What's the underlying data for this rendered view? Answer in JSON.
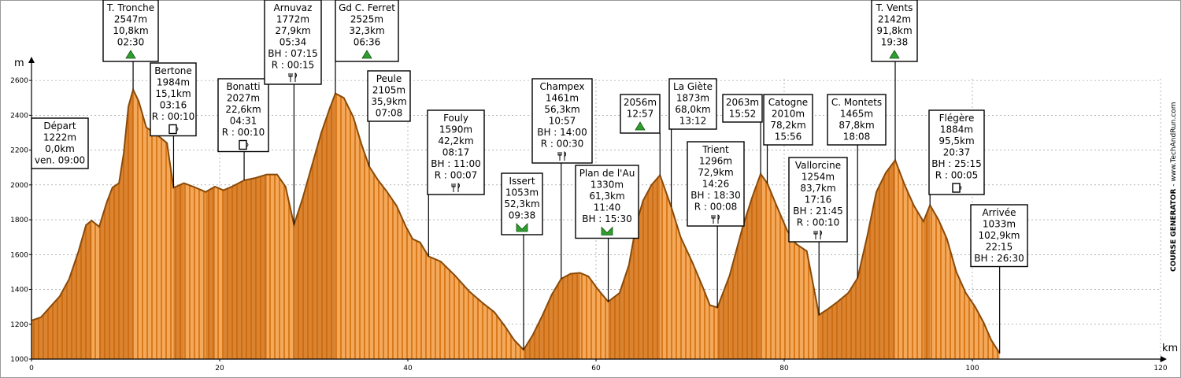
{
  "chart_data": {
    "type": "area",
    "x_unit": "km",
    "y_unit": "m",
    "xlim": [
      0,
      120
    ],
    "ylim": [
      1000,
      2700
    ],
    "x_ticks": [
      0,
      20,
      40,
      60,
      80,
      100,
      120
    ],
    "y_ticks": [
      1000,
      1200,
      1400,
      1600,
      1800,
      2000,
      2200,
      2400,
      2600
    ],
    "grid": true,
    "colors": {
      "fill_dark": "#c4650f",
      "fill_light": "#f4a85a",
      "line": "#8a4a08"
    },
    "profile": [
      [
        0,
        1222
      ],
      [
        1,
        1240
      ],
      [
        2,
        1300
      ],
      [
        3,
        1360
      ],
      [
        4,
        1460
      ],
      [
        5,
        1620
      ],
      [
        5.8,
        1770
      ],
      [
        6.4,
        1795
      ],
      [
        7.2,
        1760
      ],
      [
        8,
        1900
      ],
      [
        8.6,
        1985
      ],
      [
        9.3,
        2010
      ],
      [
        9.8,
        2180
      ],
      [
        10.3,
        2450
      ],
      [
        10.8,
        2547
      ],
      [
        11.4,
        2480
      ],
      [
        12.2,
        2330
      ],
      [
        13.3,
        2290
      ],
      [
        14.4,
        2240
      ],
      [
        15.1,
        1984
      ],
      [
        16.2,
        2010
      ],
      [
        17.2,
        1990
      ],
      [
        18.5,
        1960
      ],
      [
        19.5,
        1990
      ],
      [
        20.4,
        1970
      ],
      [
        21.3,
        1990
      ],
      [
        22.6,
        2027
      ],
      [
        23.8,
        2040
      ],
      [
        25,
        2060
      ],
      [
        26.1,
        2060
      ],
      [
        27,
        1990
      ],
      [
        27.9,
        1772
      ],
      [
        28.8,
        1920
      ],
      [
        29.8,
        2110
      ],
      [
        30.8,
        2300
      ],
      [
        31.7,
        2440
      ],
      [
        32.3,
        2525
      ],
      [
        33.2,
        2500
      ],
      [
        34.2,
        2390
      ],
      [
        35.1,
        2230
      ],
      [
        35.9,
        2105
      ],
      [
        36.8,
        2030
      ],
      [
        37.8,
        1960
      ],
      [
        38.8,
        1880
      ],
      [
        39.8,
        1760
      ],
      [
        40.5,
        1690
      ],
      [
        41.3,
        1670
      ],
      [
        42.2,
        1590
      ],
      [
        43.5,
        1560
      ],
      [
        45,
        1480
      ],
      [
        46.5,
        1390
      ],
      [
        48,
        1320
      ],
      [
        49.2,
        1270
      ],
      [
        50.3,
        1190
      ],
      [
        51.3,
        1110
      ],
      [
        52.3,
        1053
      ],
      [
        53.3,
        1140
      ],
      [
        54.3,
        1250
      ],
      [
        55.3,
        1370
      ],
      [
        56.3,
        1461
      ],
      [
        57.3,
        1490
      ],
      [
        58.3,
        1495
      ],
      [
        59.2,
        1475
      ],
      [
        60.2,
        1400
      ],
      [
        61.3,
        1330
      ],
      [
        62.5,
        1380
      ],
      [
        63.5,
        1540
      ],
      [
        64.3,
        1780
      ],
      [
        65,
        1910
      ],
      [
        65.9,
        2000
      ],
      [
        66.8,
        2056
      ],
      [
        68,
        1873
      ],
      [
        69,
        1700
      ],
      [
        70.2,
        1560
      ],
      [
        71.3,
        1420
      ],
      [
        72.1,
        1310
      ],
      [
        72.9,
        1296
      ],
      [
        74.2,
        1480
      ],
      [
        75.6,
        1760
      ],
      [
        76.6,
        1930
      ],
      [
        77.5,
        2063
      ],
      [
        78.2,
        2010
      ],
      [
        79.2,
        1880
      ],
      [
        80.3,
        1740
      ],
      [
        81.3,
        1660
      ],
      [
        82.4,
        1620
      ],
      [
        83.7,
        1254
      ],
      [
        84.7,
        1290
      ],
      [
        85.7,
        1330
      ],
      [
        86.8,
        1380
      ],
      [
        87.8,
        1465
      ],
      [
        88.8,
        1700
      ],
      [
        89.8,
        1960
      ],
      [
        90.8,
        2070
      ],
      [
        91.8,
        2142
      ],
      [
        92.8,
        2000
      ],
      [
        93.8,
        1880
      ],
      [
        94.8,
        1790
      ],
      [
        95.5,
        1884
      ],
      [
        96.4,
        1800
      ],
      [
        97.3,
        1690
      ],
      [
        98.3,
        1500
      ],
      [
        99.3,
        1380
      ],
      [
        100.3,
        1300
      ],
      [
        101.2,
        1210
      ],
      [
        102,
        1110
      ],
      [
        102.9,
        1033
      ]
    ],
    "labels": [
      {
        "km": 0.0,
        "elev": 1222,
        "lines": [
          "Départ",
          "1222m",
          "0,0km",
          "ven. 09:00"
        ],
        "icon": ""
      },
      {
        "km": 10.8,
        "elev": 2547,
        "lines": [
          "T. Tronche",
          "2547m",
          "10,8km",
          "02:30"
        ],
        "icon": "summit"
      },
      {
        "km": 15.1,
        "elev": 1984,
        "lines": [
          "Bertone",
          "1984m",
          "15,1km",
          "03:16",
          "R : 00:10"
        ],
        "icon": "drink"
      },
      {
        "km": 22.6,
        "elev": 2027,
        "lines": [
          "Bonatti",
          "2027m",
          "22,6km",
          "04:31",
          "R : 00:10"
        ],
        "icon": "drink"
      },
      {
        "km": 27.9,
        "elev": 1772,
        "lines": [
          "Arnuvaz",
          "1772m",
          "27,9km",
          "05:34",
          "BH : 07:15",
          "R : 00:15"
        ],
        "icon": "food"
      },
      {
        "km": 32.3,
        "elev": 2525,
        "lines": [
          "Gd C. Ferret",
          "2525m",
          "32,3km",
          "06:36"
        ],
        "icon": "summit"
      },
      {
        "km": 35.9,
        "elev": 2105,
        "lines": [
          "Peule",
          "2105m",
          "35,9km",
          "07:08"
        ],
        "icon": ""
      },
      {
        "km": 42.2,
        "elev": 1590,
        "lines": [
          "Fouly",
          "1590m",
          "42,2km",
          "08:17",
          "BH : 11:00",
          "R : 00:07"
        ],
        "icon": "food"
      },
      {
        "km": 52.3,
        "elev": 1053,
        "lines": [
          "Issert",
          "1053m",
          "52,3km",
          "09:38"
        ],
        "icon": "valley"
      },
      {
        "km": 56.3,
        "elev": 1461,
        "lines": [
          "Champex",
          "1461m",
          "56,3km",
          "10:57",
          "BH : 14:00",
          "R : 00:30"
        ],
        "icon": "food"
      },
      {
        "km": 61.3,
        "elev": 1330,
        "lines": [
          "Plan de l'Au",
          "1330m",
          "61,3km",
          "11:40",
          "BH : 15:30"
        ],
        "icon": "valley"
      },
      {
        "km": 66.8,
        "elev": 2056,
        "lines": [
          "2056m",
          "12:57"
        ],
        "icon": "summit"
      },
      {
        "km": 68.0,
        "elev": 1873,
        "lines": [
          "La Giète",
          "1873m",
          "68,0km",
          "13:12"
        ],
        "icon": ""
      },
      {
        "km": 72.9,
        "elev": 1296,
        "lines": [
          "Trient",
          "1296m",
          "72,9km",
          "14:26",
          "BH : 18:30",
          "R : 00:08"
        ],
        "icon": "food"
      },
      {
        "km": 77.5,
        "elev": 2063,
        "lines": [
          "2063m",
          "15:52"
        ],
        "icon": ""
      },
      {
        "km": 78.2,
        "elev": 2010,
        "lines": [
          "Catogne",
          "2010m",
          "78,2km",
          "15:56"
        ],
        "icon": ""
      },
      {
        "km": 83.7,
        "elev": 1254,
        "lines": [
          "Vallorcine",
          "1254m",
          "83,7km",
          "17:16",
          "BH : 21:45",
          "R : 00:10"
        ],
        "icon": "food"
      },
      {
        "km": 87.8,
        "elev": 1465,
        "lines": [
          "C. Montets",
          "1465m",
          "87,8km",
          "18:08"
        ],
        "icon": ""
      },
      {
        "km": 91.8,
        "elev": 2142,
        "lines": [
          "T. Vents",
          "2142m",
          "91,8km",
          "19:38"
        ],
        "icon": "summit"
      },
      {
        "km": 95.5,
        "elev": 1884,
        "lines": [
          "Flégère",
          "1884m",
          "95,5km",
          "20:37",
          "BH : 25:15",
          "R : 00:05"
        ],
        "icon": "drink"
      },
      {
        "km": 102.9,
        "elev": 1033,
        "lines": [
          "Arrivée",
          "1033m",
          "102,9km",
          "22:15",
          "BH : 26:30"
        ],
        "icon": ""
      }
    ]
  },
  "side_text": {
    "generator": "COURSE GENERATOR",
    "site": " - www.TechAndRun.com"
  }
}
